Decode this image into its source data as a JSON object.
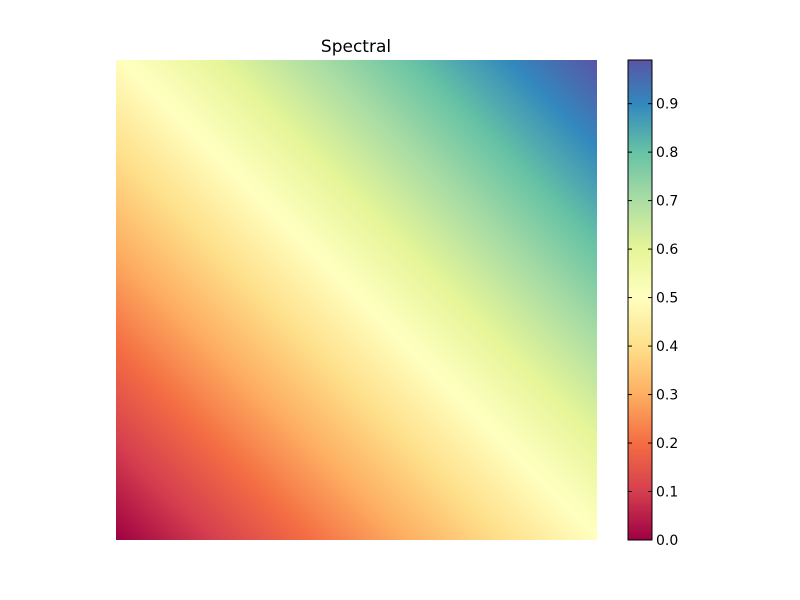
{
  "chart_data": {
    "type": "heatmap",
    "title": "Spectral",
    "colormap": "Spectral",
    "description_value_field": "z = (x + y) / 2, x and y from 0 to 1",
    "grid": false,
    "axes_visible": false,
    "colorbar": {
      "orientation": "vertical",
      "placement": "right",
      "range": [
        0.0,
        0.99
      ],
      "ticks": [
        0.0,
        0.1,
        0.2,
        0.3,
        0.4,
        0.5,
        0.6,
        0.7,
        0.8,
        0.9
      ],
      "tick_labels": [
        "0.0",
        "0.1",
        "0.2",
        "0.3",
        "0.4",
        "0.5",
        "0.6",
        "0.7",
        "0.8",
        "0.9"
      ]
    },
    "color_stops": [
      {
        "value": 0.0,
        "color": "#9e0142"
      },
      {
        "value": 0.1,
        "color": "#d53e4f"
      },
      {
        "value": 0.2,
        "color": "#f46d43"
      },
      {
        "value": 0.3,
        "color": "#fdae61"
      },
      {
        "value": 0.4,
        "color": "#fee08b"
      },
      {
        "value": 0.5,
        "color": "#ffffbf"
      },
      {
        "value": 0.6,
        "color": "#e6f598"
      },
      {
        "value": 0.7,
        "color": "#abdda4"
      },
      {
        "value": 0.8,
        "color": "#66c2a5"
      },
      {
        "value": 0.9,
        "color": "#3288bd"
      },
      {
        "value": 1.0,
        "color": "#5e4fa2"
      }
    ],
    "corner_values": {
      "bottom_left": 0.0,
      "top_left": 0.5,
      "bottom_right": 0.5,
      "top_right": 0.99
    }
  }
}
